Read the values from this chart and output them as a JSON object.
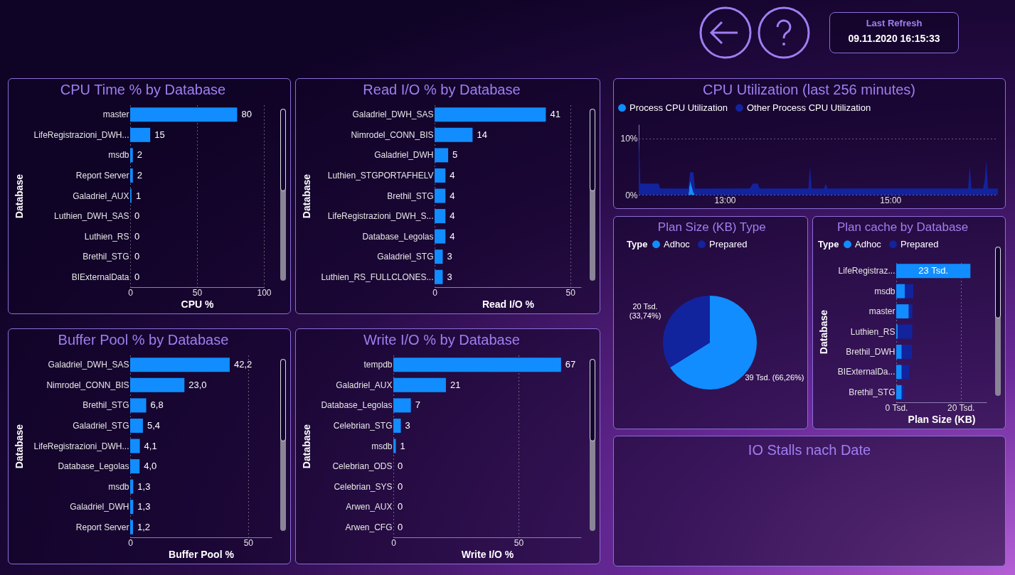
{
  "chart_data": [
    {
      "type": "other",
      "title": "Last Refresh",
      "annotations": [
        "09.11.2020 16:15:33"
      ]
    },
    {
      "type": "bar",
      "orientation": "horizontal",
      "title": "CPU Time % by Database",
      "xlabel": "CPU %",
      "ylabel": "Database",
      "categories": [
        "master",
        "LifeRegistrazioni_DWH...",
        "msdb",
        "Report Server",
        "Galadriel_AUX",
        "Luthien_DWH_SAS",
        "Luthien_RS",
        "Brethil_STG",
        "BIExternalData"
      ],
      "color": "#118dff",
      "values": [
        80,
        15,
        2,
        2,
        1,
        0,
        0,
        0,
        0
      ],
      "value_labels": [
        "80",
        "15",
        "2",
        "2",
        "1",
        "0",
        "0",
        "0",
        "0"
      ],
      "xlim": [
        0,
        100
      ],
      "xticks": [
        0,
        50,
        100
      ],
      "grid": "x"
    },
    {
      "type": "bar",
      "orientation": "horizontal",
      "title": "Read I/O % by Database",
      "xlabel": "Read I/O %",
      "ylabel": "Database",
      "categories": [
        "Galadriel_DWH_SAS",
        "Nimrodel_CONN_BIS",
        "Galadriel_DWH",
        "Luthien_STGPORTAFHELV",
        "Brethil_STG",
        "LifeRegistrazioni_DWH_S...",
        "Database_Legolas",
        "Galadriel_STG",
        "Luthien_RS_FULLCLONES..."
      ],
      "color": "#118dff",
      "values": [
        41,
        14,
        5,
        4,
        4,
        4,
        4,
        3,
        3
      ],
      "value_labels": [
        "41",
        "14",
        "5",
        "4",
        "4",
        "4",
        "4",
        "3",
        "3"
      ],
      "xlim": [
        0,
        54
      ],
      "xticks": [
        0,
        50
      ],
      "grid": "x"
    },
    {
      "type": "area",
      "stacked": true,
      "title": "CPU Utilization (last 256 minutes)",
      "legend": "top left",
      "x": [
        11.96,
        11.98,
        12.2,
        12.22,
        12.5,
        12.56,
        12.58,
        12.62,
        12.64,
        13.3,
        13.34,
        13.4,
        13.42,
        14.01,
        14.03,
        14.05,
        14.2,
        14.22,
        14.24,
        15.94,
        15.96,
        15.98,
        16.12,
        16.14,
        16.16,
        16.18,
        16.3
      ],
      "series": [
        {
          "name": "Process CPU Utilization",
          "color": "#118dff",
          "values": [
            0,
            0,
            0,
            0,
            0,
            0,
            2.5,
            0.5,
            0,
            0,
            0,
            0,
            0,
            0,
            0,
            0,
            0,
            0,
            0,
            0,
            0,
            0,
            0,
            0,
            0,
            0,
            0
          ]
        },
        {
          "name": "Other Process CPU Utilization",
          "color": "#12239e",
          "values": [
            11.3,
            2,
            2,
            1.1,
            1.1,
            1.1,
            1.5,
            3.5,
            1.1,
            1.1,
            2,
            2,
            1.1,
            1.1,
            5.1,
            1.1,
            1.1,
            2,
            1.1,
            1.1,
            5.2,
            1.1,
            1.1,
            2.5,
            6.2,
            1.1,
            1.1
          ]
        }
      ],
      "xlim": [
        11.96,
        16.3
      ],
      "xticks": [
        {
          "value": 13,
          "label": "13:00"
        },
        {
          "value": 15,
          "label": "15:00"
        }
      ],
      "ylim": [
        0,
        12.5
      ],
      "yticks": [
        {
          "value": 0,
          "label": "0%"
        },
        {
          "value": 10,
          "label": "10%"
        }
      ],
      "grid": "y"
    },
    {
      "type": "pie",
      "title": "Plan Size (KB) Type",
      "legend_title": "Type",
      "legend": "top left",
      "categories": [
        "Adhoc",
        "Prepared"
      ],
      "values": [
        39,
        20
      ],
      "colors": [
        "#118dff",
        "#12239e"
      ],
      "value_labels": [
        "39 Tsd. (66,26%)",
        "20 Tsd.\n(33,74%)"
      ]
    },
    {
      "type": "bar",
      "orientation": "horizontal",
      "stacked": true,
      "title": "Plan cache by Database",
      "xlabel": "Plan Size (KB)",
      "ylabel": "Database",
      "legend_title": "Type",
      "legend": "top left",
      "categories": [
        "LifeRegistraz...",
        "msdb",
        "master",
        "Luthien_RS",
        "Brethil_DWH",
        "BIExternalDa...",
        "Brethil_STG"
      ],
      "series": [
        {
          "name": "Adhoc",
          "color": "#118dff",
          "values": [
            23,
            2.7,
            3.9,
            0.5,
            1.7,
            1.7,
            1.7
          ],
          "value_labels": [
            "23 Tsd.",
            null,
            null,
            null,
            null,
            null,
            null
          ]
        },
        {
          "name": "Prepared",
          "color": "#12239e",
          "values": [
            0,
            2.6,
            1.1,
            4.5,
            3.2,
            2.4,
            0.8
          ]
        }
      ],
      "xlim": [
        0,
        28
      ],
      "xticks": [
        {
          "value": 0,
          "label": "0 Tsd."
        },
        {
          "value": 20,
          "label": "20 Tsd."
        }
      ],
      "grid": "x"
    },
    {
      "type": "bar",
      "orientation": "horizontal",
      "title": "Buffer Pool % by Database",
      "xlabel": "Buffer Pool %",
      "ylabel": "Database",
      "categories": [
        "Galadriel_DWH_SAS",
        "Nimrodel_CONN_BIS",
        "Brethil_STG",
        "Galadriel_STG",
        "LifeRegistrazioni_DWH...",
        "Database_Legolas",
        "msdb",
        "Galadriel_DWH",
        "Report Server"
      ],
      "color": "#118dff",
      "values": [
        42.2,
        23.0,
        6.8,
        5.4,
        4.1,
        4.0,
        1.3,
        1.3,
        1.2
      ],
      "value_labels": [
        "42,2",
        "23,0",
        "6,8",
        "5,4",
        "4,1",
        "4,0",
        "1,3",
        "1,3",
        "1,2"
      ],
      "xlim": [
        0,
        60
      ],
      "xticks": [
        0,
        50
      ],
      "grid": "x"
    },
    {
      "type": "bar",
      "orientation": "horizontal",
      "title": "Write I/O % by Database",
      "xlabel": "Write I/O %",
      "ylabel": "Database",
      "categories": [
        "tempdb",
        "Galadriel_AUX",
        "Database_Legolas",
        "Celebrian_STG",
        "msdb",
        "Celebrian_ODS",
        "Celebrian_SYS",
        "Arwen_AUX",
        "Arwen_CFG"
      ],
      "color": "#118dff",
      "values": [
        67,
        21,
        7,
        3,
        1,
        0,
        0,
        0,
        0
      ],
      "value_labels": [
        "67",
        "21",
        "7",
        "3",
        "1",
        "0",
        "0",
        "0",
        "0"
      ],
      "xlim": [
        0,
        75
      ],
      "xticks": [
        0,
        50
      ],
      "grid": "x"
    },
    {
      "type": "other",
      "title": "IO Stalls nach Date"
    }
  ]
}
